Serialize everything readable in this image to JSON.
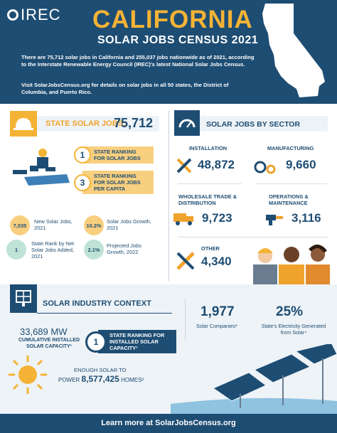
{
  "header": {
    "logo": "IREC",
    "title": "CALIFORNIA",
    "subtitle": "SOLAR JOBS CENSUS 2021",
    "intro_1": "There are 75,712 solar jobs in California and 255,037 jobs nationwide as of 2021, according to the Interstate Renewable Energy Council (IREC)'s latest National Solar Jobs Census.",
    "intro_2": "Visit SolarJobsCensus.org for details on solar jobs in all 50 states, the District of Columbia, and Puerto Rico."
  },
  "state_jobs": {
    "label": "STATE SOLAR JOBS:",
    "value": "75,712",
    "rank_1_num": "1",
    "rank_1_text": "STATE RANKING FOR SOLAR JOBS",
    "rank_2_num": "3",
    "rank_2_text": "STATE RANKING FOR SOLAR JOBS PER CAPITA",
    "stats": [
      {
        "value": "7,035",
        "text": "New Solar Jobs, 2021",
        "color": "#f8cf7f"
      },
      {
        "value": "10.2%",
        "text": "Solar Jobs Growth, 2021",
        "color": "#f8cf7f"
      },
      {
        "value": "1",
        "text": "State Rank by Net Solar Jobs Added, 2021",
        "color": "#bfe3d6"
      },
      {
        "value": "2.1%",
        "text": "Projected Jobs Growth, 2022",
        "color": "#bfe3d6"
      }
    ]
  },
  "sectors": {
    "label": "SOLAR JOBS BY SECTOR",
    "installation_label": "INSTALLATION",
    "installation_value": "48,872",
    "manufacturing_label": "MANUFACTURING",
    "manufacturing_value": "9,660",
    "wholesale_label": "WHOLESALE TRADE & DISTRIBUTION",
    "wholesale_value": "9,723",
    "operations_label": "OPERATIONS & MAINTENANCE",
    "operations_value": "3,116",
    "other_label": "OTHER",
    "other_value": "4,340"
  },
  "context": {
    "label": "SOLAR INDUSTRY CONTEXT",
    "capacity_value": "33,689 MW",
    "capacity_text": "CUMULATIVE INSTALLED SOLAR CAPACITY¹",
    "rank_num": "1",
    "rank_text": "STATE RANKING FOR INSTALLED SOLAR CAPACITY¹",
    "companies_value": "1,977",
    "companies_text": "Solar Companies³",
    "electricity_value": "25%",
    "electricity_text": "State's Electricity Generated from Solar⁴",
    "homes_line1": "ENOUGH SOLAR TO",
    "homes_prefix": "POWER",
    "homes_value": "8,577,425",
    "homes_suffix": "HOMES²"
  },
  "footer": {
    "text": "Learn more at SolarJobsCensus.org"
  }
}
